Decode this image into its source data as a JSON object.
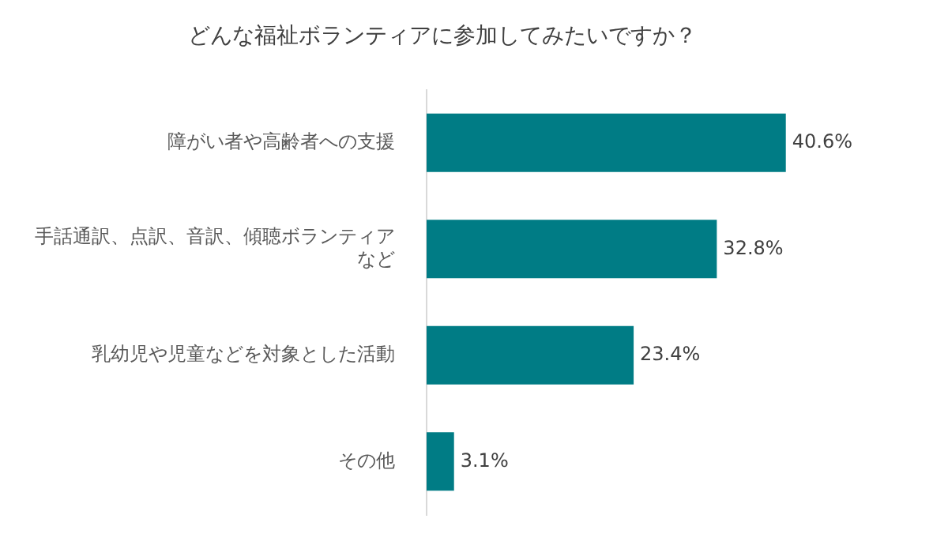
{
  "chart_data": {
    "type": "bar",
    "orientation": "horizontal",
    "title": "どんな福祉ボランティアに参加してみたいですか？",
    "categories": [
      "障がい者や高齢者への支援",
      "手話通訳、点訳、音訳、傾聴ボランティアなど",
      "乳幼児や児童などを対象とした活動",
      "その他"
    ],
    "values": [
      40.6,
      32.8,
      23.4,
      3.1
    ],
    "value_labels": [
      "40.6%",
      "32.8%",
      "23.4%",
      "3.1%"
    ],
    "color": "#007c85",
    "legend": false
  }
}
